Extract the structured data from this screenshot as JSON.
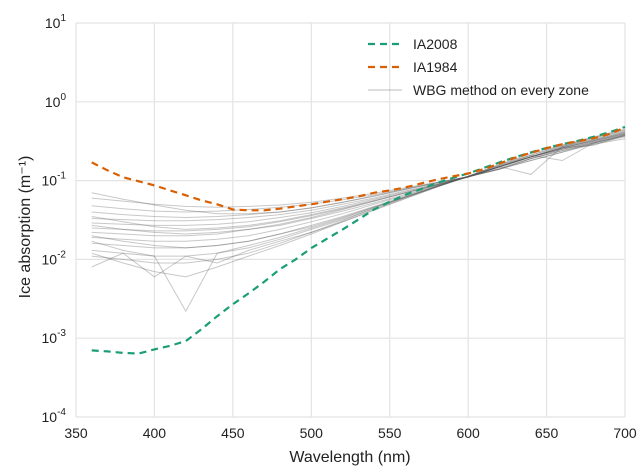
{
  "chart_data": {
    "type": "line",
    "xlabel": "Wavelength (nm)",
    "ylabel": "Ice absorption (m⁻¹)",
    "xlim": [
      350,
      700
    ],
    "ylim": [
      0.0001,
      10
    ],
    "y_scale": "log",
    "grid": true,
    "legend_position": "top-right",
    "x_ticks": [
      350,
      400,
      450,
      500,
      550,
      600,
      650,
      700
    ],
    "y_ticks": [
      {
        "value": 0.0001,
        "base": "10",
        "exp": "-4"
      },
      {
        "value": 0.001,
        "base": "10",
        "exp": "-3"
      },
      {
        "value": 0.01,
        "base": "10",
        "exp": "-2"
      },
      {
        "value": 0.1,
        "base": "10",
        "exp": "-1"
      },
      {
        "value": 1,
        "base": "10",
        "exp": "0"
      },
      {
        "value": 10,
        "base": "10",
        "exp": "1"
      }
    ],
    "series": [
      {
        "name": "IA2008",
        "color": "#1b9e77",
        "style": "dashed",
        "x": [
          360,
          370,
          380,
          390,
          400,
          410,
          420,
          430,
          440,
          450,
          460,
          470,
          480,
          490,
          500,
          510,
          520,
          530,
          540,
          550,
          560,
          570,
          580,
          590,
          600,
          610,
          620,
          630,
          640,
          650,
          660,
          670,
          680,
          690,
          700
        ],
        "y": [
          0.0007,
          0.00068,
          0.00065,
          0.00064,
          0.00072,
          0.0008,
          0.00092,
          0.0013,
          0.0019,
          0.0027,
          0.0037,
          0.0052,
          0.0075,
          0.01,
          0.0139,
          0.0183,
          0.024,
          0.032,
          0.043,
          0.054,
          0.066,
          0.078,
          0.093,
          0.108,
          0.123,
          0.145,
          0.17,
          0.198,
          0.228,
          0.26,
          0.29,
          0.32,
          0.36,
          0.41,
          0.48
        ]
      },
      {
        "name": "IA1984",
        "color": "#d95f02",
        "style": "dashed",
        "x": [
          360,
          370,
          380,
          390,
          400,
          410,
          420,
          430,
          440,
          450,
          460,
          470,
          480,
          490,
          500,
          510,
          520,
          530,
          540,
          550,
          560,
          570,
          580,
          590,
          600,
          610,
          620,
          630,
          640,
          650,
          660,
          670,
          680,
          690,
          700
        ],
        "y": [
          0.17,
          0.135,
          0.11,
          0.098,
          0.087,
          0.075,
          0.065,
          0.056,
          0.05,
          0.043,
          0.042,
          0.042,
          0.044,
          0.047,
          0.05,
          0.054,
          0.058,
          0.063,
          0.07,
          0.075,
          0.082,
          0.092,
          0.103,
          0.113,
          0.123,
          0.14,
          0.165,
          0.195,
          0.225,
          0.258,
          0.29,
          0.315,
          0.345,
          0.39,
          0.47
        ]
      }
    ],
    "ensemble": {
      "name": "WBG method on every zone",
      "color": "#888888",
      "style": "solid",
      "x": [
        360,
        380,
        400,
        420,
        440,
        460,
        480,
        500,
        520,
        540,
        560,
        580,
        600,
        620,
        640,
        660,
        680,
        700
      ],
      "lines": [
        [
          0.033,
          0.032,
          0.031,
          0.031,
          0.032,
          0.034,
          0.037,
          0.042,
          0.05,
          0.06,
          0.074,
          0.09,
          0.11,
          0.15,
          0.2,
          0.26,
          0.32,
          0.4
        ],
        [
          0.029,
          0.028,
          0.027,
          0.027,
          0.028,
          0.03,
          0.034,
          0.039,
          0.047,
          0.058,
          0.072,
          0.09,
          0.112,
          0.15,
          0.2,
          0.26,
          0.32,
          0.39
        ],
        [
          0.025,
          0.024,
          0.023,
          0.023,
          0.024,
          0.026,
          0.03,
          0.036,
          0.044,
          0.055,
          0.07,
          0.088,
          0.112,
          0.15,
          0.2,
          0.25,
          0.31,
          0.38
        ],
        [
          0.022,
          0.021,
          0.02,
          0.02,
          0.021,
          0.024,
          0.027,
          0.033,
          0.041,
          0.052,
          0.067,
          0.087,
          0.111,
          0.15,
          0.2,
          0.26,
          0.33,
          0.41
        ],
        [
          0.019,
          0.018,
          0.017,
          0.017,
          0.018,
          0.02,
          0.024,
          0.03,
          0.038,
          0.05,
          0.065,
          0.086,
          0.112,
          0.15,
          0.2,
          0.27,
          0.34,
          0.42
        ],
        [
          0.016,
          0.015,
          0.014,
          0.014,
          0.015,
          0.017,
          0.021,
          0.027,
          0.035,
          0.047,
          0.063,
          0.085,
          0.113,
          0.15,
          0.2,
          0.25,
          0.3,
          0.37
        ],
        [
          0.013,
          0.012,
          0.011,
          0.011,
          0.012,
          0.014,
          0.018,
          0.024,
          0.032,
          0.044,
          0.061,
          0.084,
          0.113,
          0.155,
          0.21,
          0.27,
          0.33,
          0.41
        ],
        [
          0.011,
          0.01,
          0.009,
          0.009,
          0.01,
          0.012,
          0.016,
          0.022,
          0.03,
          0.042,
          0.059,
          0.083,
          0.113,
          0.16,
          0.22,
          0.28,
          0.35,
          0.43
        ],
        [
          0.04,
          0.037,
          0.035,
          0.034,
          0.035,
          0.037,
          0.04,
          0.045,
          0.053,
          0.063,
          0.077,
          0.093,
          0.112,
          0.145,
          0.19,
          0.24,
          0.3,
          0.37
        ],
        [
          0.048,
          0.044,
          0.041,
          0.04,
          0.041,
          0.043,
          0.046,
          0.05,
          0.057,
          0.066,
          0.079,
          0.094,
          0.112,
          0.14,
          0.18,
          0.23,
          0.29,
          0.36
        ],
        [
          0.06,
          0.055,
          0.05,
          0.047,
          0.046,
          0.047,
          0.049,
          0.053,
          0.06,
          0.069,
          0.081,
          0.095,
          0.112,
          0.14,
          0.18,
          0.23,
          0.3,
          0.38
        ],
        [
          0.027,
          0.024,
          0.022,
          0.021,
          0.022,
          0.024,
          0.028,
          0.034,
          0.043,
          0.055,
          0.07,
          0.089,
          0.112,
          0.14,
          0.19,
          0.24,
          0.29,
          0.34
        ],
        [
          0.008,
          0.012,
          0.006,
          0.011,
          0.009,
          0.013,
          0.017,
          0.022,
          0.031,
          0.045,
          0.062,
          0.085,
          0.113,
          0.16,
          0.21,
          0.18,
          0.3,
          0.37
        ],
        [
          0.07,
          0.058,
          0.049,
          0.042,
          0.038,
          0.038,
          0.04,
          0.045,
          0.053,
          0.064,
          0.078,
          0.094,
          0.112,
          0.14,
          0.19,
          0.25,
          0.31,
          0.39
        ],
        [
          0.02,
          0.017,
          0.015,
          0.014,
          0.015,
          0.017,
          0.021,
          0.026,
          0.034,
          0.046,
          0.062,
          0.084,
          0.112,
          0.15,
          0.2,
          0.26,
          0.32,
          0.4
        ],
        [
          0.012,
          0.009,
          0.007,
          0.006,
          0.008,
          0.011,
          0.015,
          0.021,
          0.03,
          0.043,
          0.06,
          0.083,
          0.113,
          0.15,
          0.12,
          0.27,
          0.35,
          0.44
        ],
        [
          0.035,
          0.03,
          0.026,
          0.024,
          0.025,
          0.027,
          0.031,
          0.037,
          0.045,
          0.056,
          0.07,
          0.088,
          0.111,
          0.15,
          0.21,
          0.28,
          0.36,
          0.45
        ],
        [
          0.017,
          0.013,
          0.011,
          0.0022,
          0.012,
          0.015,
          0.019,
          0.025,
          0.033,
          0.046,
          0.062,
          0.084,
          0.113,
          0.155,
          0.2,
          0.26,
          0.28,
          0.38
        ]
      ]
    }
  }
}
